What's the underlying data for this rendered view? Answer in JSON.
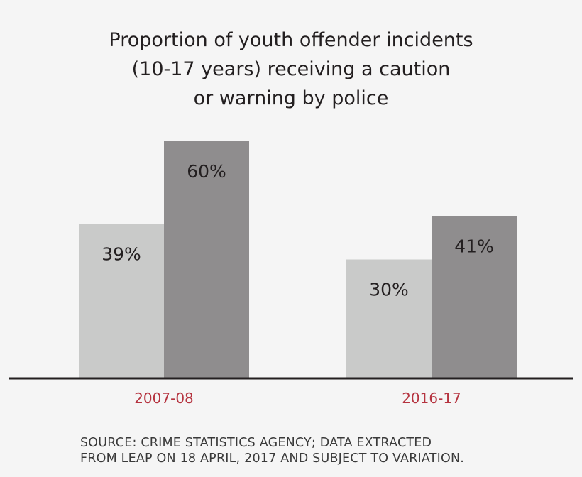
{
  "chart_data": {
    "type": "bar",
    "title": "Proportion of youth offender incidents\n(10-17 years) receiving a caution\nor warning by police",
    "categories": [
      "2007-08",
      "2016-17"
    ],
    "series": [
      {
        "values": [
          39,
          30
        ],
        "labels": [
          "39%",
          "30%"
        ],
        "color": "#c9cac9"
      },
      {
        "values": [
          60,
          41
        ],
        "labels": [
          "60%",
          "41%"
        ],
        "color": "#8f8d8e"
      }
    ],
    "xlabel": "",
    "ylabel": "",
    "ylim": [
      0,
      60
    ],
    "grid": false,
    "legend": "none",
    "category_label_color": "#b5333f",
    "axis_color": "#231f20"
  },
  "source": "SOURCE: CRIME STATISTICS AGENCY; DATA EXTRACTED\nFROM LEAP ON 18 APRIL, 2017 AND SUBJECT TO VARIATION."
}
